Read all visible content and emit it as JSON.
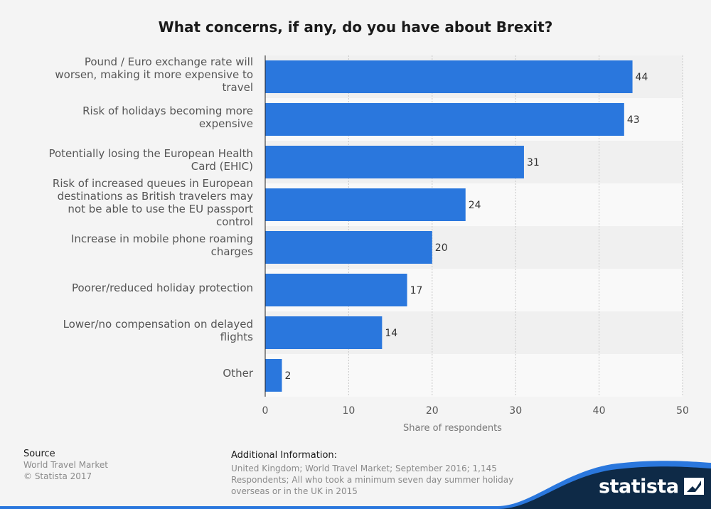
{
  "chart_data": {
    "type": "bar",
    "orientation": "horizontal",
    "title": "What concerns, if any, do you have about Brexit?",
    "xlabel": "Share of respondents",
    "xlim": [
      0,
      50
    ],
    "xticks": [
      0,
      10,
      20,
      30,
      40,
      50
    ],
    "grid": true,
    "categories": [
      [
        "Pound / Euro exchange rate will",
        "worsen, making it more expensive to",
        "travel"
      ],
      [
        "Risk of holidays becoming more",
        "expensive"
      ],
      [
        "Potentially losing the European Health",
        "Card (EHIC)"
      ],
      [
        "Risk of increased queues in European",
        "destinations as British travelers may",
        "not be able to use the EU passport",
        "control"
      ],
      [
        "Increase in mobile phone roaming",
        "charges"
      ],
      [
        "Poorer/reduced holiday protection"
      ],
      [
        "Lower/no compensation on delayed",
        "flights"
      ],
      [
        "Other"
      ]
    ],
    "values": [
      44,
      43,
      31,
      24,
      20,
      17,
      14,
      2
    ],
    "bar_color": "#2a77dd"
  },
  "footer": {
    "source_title": "Source",
    "source_lines": [
      "World Travel Market",
      "© Statista 2017"
    ],
    "info_title": "Additional Information:",
    "info_lines": [
      "United Kingdom; World Travel Market; September 2016; 1,145",
      "Respondents; All who took a minimum seven day summer holiday",
      "overseas or in the UK in 2015"
    ]
  },
  "brand": {
    "name": "statista",
    "logo_icon": "statista-logo-icon",
    "color": "#0e2a47",
    "accent": "#2a77dd"
  }
}
